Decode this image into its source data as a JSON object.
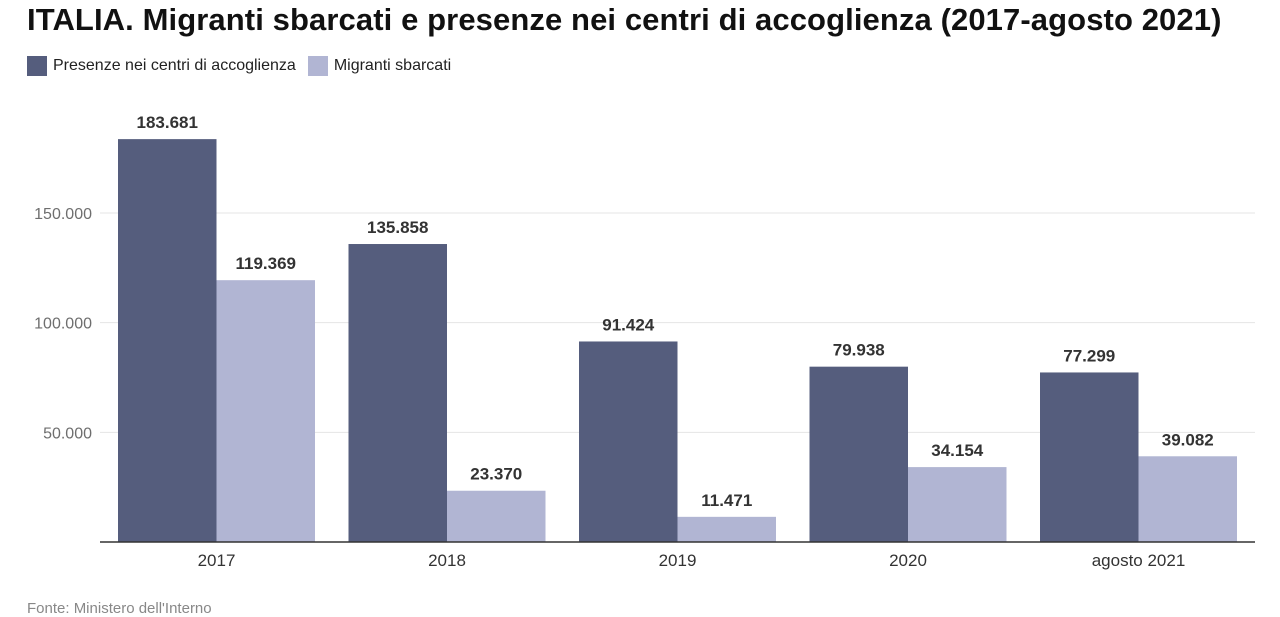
{
  "title": "ITALIA. Migranti sbarcati e presenze nei centri di accoglienza (2017-agosto 2021)",
  "source": "Fonte: Ministero dell'Interno",
  "colors": {
    "presenze": "#555d7d",
    "sbarcati": "#b1b5d3",
    "grid": "#e4e4e4",
    "axis": "#333333"
  },
  "chart_data": {
    "type": "bar",
    "categories": [
      "2017",
      "2018",
      "2019",
      "2020",
      "agosto 2021"
    ],
    "series": [
      {
        "name": "Presenze nei centri di accoglienza",
        "values": [
          183681,
          135858,
          91424,
          79938,
          77299
        ],
        "labels": [
          "183.681",
          "135.858",
          "91.424",
          "79.938",
          "77.299"
        ]
      },
      {
        "name": "Migranti sbarcati",
        "values": [
          119369,
          23370,
          11471,
          34154,
          39082
        ],
        "labels": [
          "119.369",
          "23.370",
          "11.471",
          "34.154",
          "39.082"
        ]
      }
    ],
    "yticks": [
      50000,
      100000,
      150000
    ],
    "ytick_labels": [
      "50.000",
      "100.000",
      "150.000"
    ],
    "ylim": [
      0,
      185000
    ],
    "grid": true,
    "legend": "top-left"
  }
}
